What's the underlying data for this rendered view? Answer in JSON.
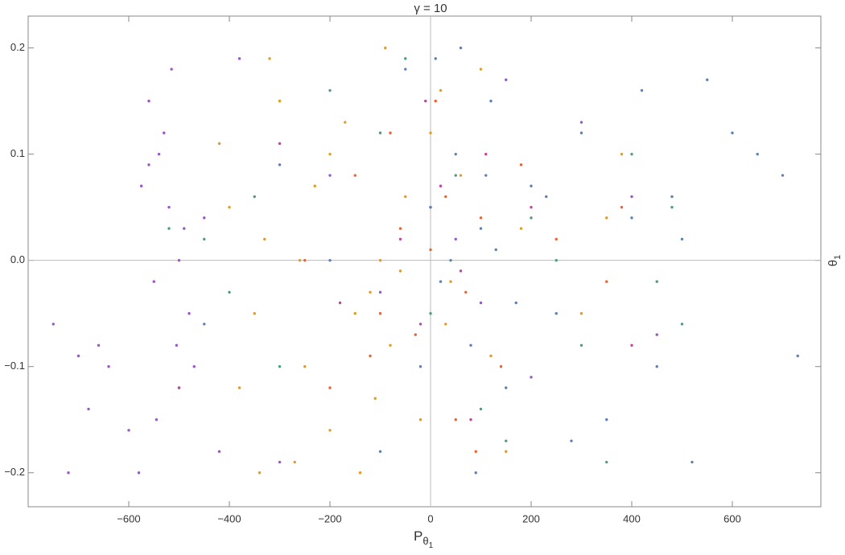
{
  "chart_data": {
    "type": "scatter",
    "title": "γ = 10",
    "x_label": "P",
    "x_label_sub": "θ",
    "x_label_subsub": "1",
    "y_label": "θ",
    "y_label_sub": "1",
    "xlim": [
      -800,
      776
    ],
    "ylim": [
      -0.232,
      0.23
    ],
    "xticks": [
      {
        "value": -600,
        "label": "−600"
      },
      {
        "value": -400,
        "label": "−400"
      },
      {
        "value": -200,
        "label": "−200"
      },
      0,
      200,
      400,
      600
    ],
    "yticks": [
      {
        "value": -0.2,
        "label": "−0.2"
      },
      {
        "value": -0.1,
        "label": "−0.1"
      },
      {
        "value": 0,
        "label": "0.0"
      },
      0.1,
      0.2
    ],
    "series": [
      {
        "color": "#9b55c9",
        "x": [
          -560,
          -540,
          -520,
          -500,
          -480,
          -505,
          -530,
          -550,
          -575,
          -490,
          -470,
          -515,
          -545,
          -560,
          -500,
          -450,
          -420,
          -380,
          -300,
          -200,
          -100,
          0,
          50,
          100,
          150,
          200,
          300,
          400,
          450,
          -750,
          -720,
          -700,
          -680,
          -660,
          -640,
          -600,
          -580
        ],
        "values": [
          0.15,
          0.1,
          0.05,
          0.0,
          -0.05,
          -0.08,
          0.12,
          -0.02,
          0.07,
          0.03,
          -0.1,
          0.18,
          -0.15,
          0.09,
          -0.12,
          0.04,
          -0.18,
          0.19,
          -0.19,
          0.08,
          -0.03,
          0.05,
          0.02,
          -0.04,
          0.17,
          -0.11,
          0.13,
          0.06,
          -0.07,
          -0.06,
          -0.2,
          -0.09,
          -0.14,
          -0.08,
          -0.1,
          -0.16,
          -0.2
        ]
      },
      {
        "color": "#e19c24",
        "x": [
          -400,
          -350,
          -330,
          -300,
          -250,
          -200,
          -150,
          -120,
          -100,
          -80,
          -50,
          -20,
          0,
          30,
          60,
          100,
          150,
          180,
          -380,
          -320,
          -270,
          -230,
          -170,
          -110,
          -60,
          20,
          120,
          -340,
          -260,
          -140,
          300,
          350,
          380,
          -420,
          -200,
          -90,
          40
        ],
        "values": [
          0.05,
          -0.05,
          0.02,
          0.15,
          -0.1,
          0.1,
          -0.05,
          -0.03,
          0.0,
          -0.08,
          0.06,
          -0.15,
          0.12,
          -0.06,
          0.08,
          0.18,
          -0.18,
          0.03,
          -0.12,
          0.19,
          -0.19,
          0.07,
          0.13,
          -0.13,
          -0.01,
          0.16,
          -0.09,
          -0.2,
          0.0,
          -0.2,
          -0.05,
          0.04,
          0.1,
          0.11,
          -0.16,
          0.2,
          -0.02
        ]
      },
      {
        "color": "#5e81b5",
        "x": [
          0,
          20,
          50,
          80,
          100,
          120,
          150,
          200,
          250,
          300,
          350,
          400,
          450,
          500,
          550,
          600,
          650,
          700,
          730,
          -50,
          -100,
          -200,
          -300,
          -450,
          60,
          90,
          130,
          170,
          230,
          280,
          420,
          480,
          520,
          10,
          40,
          -20,
          110
        ],
        "values": [
          0.05,
          -0.02,
          0.1,
          -0.08,
          0.03,
          0.15,
          -0.12,
          0.07,
          -0.05,
          0.12,
          -0.15,
          0.04,
          -0.1,
          0.02,
          0.17,
          0.12,
          0.1,
          0.08,
          -0.09,
          0.18,
          -0.18,
          0.0,
          0.09,
          -0.06,
          0.2,
          -0.2,
          0.01,
          -0.04,
          0.06,
          -0.17,
          0.16,
          0.06,
          -0.19,
          0.19,
          0.0,
          -0.1,
          0.08
        ]
      },
      {
        "color": "#eb6235",
        "x": [
          -100,
          -60,
          -30,
          0,
          30,
          70,
          100,
          140,
          -150,
          -200,
          250,
          350,
          380,
          -250,
          50,
          -80,
          10,
          90,
          180,
          -120
        ],
        "values": [
          -0.05,
          0.03,
          -0.07,
          0.01,
          0.06,
          -0.03,
          0.04,
          -0.1,
          0.08,
          -0.12,
          0.02,
          -0.02,
          0.05,
          0.0,
          -0.15,
          0.12,
          0.15,
          -0.18,
          0.09,
          -0.09
        ]
      },
      {
        "color": "#4f9a86",
        "x": [
          -450,
          -400,
          -350,
          -300,
          -100,
          0,
          50,
          100,
          200,
          250,
          300,
          400,
          450,
          480,
          500,
          -200,
          150,
          -50,
          350,
          -520
        ],
        "values": [
          0.02,
          -0.03,
          0.06,
          -0.1,
          0.12,
          -0.05,
          0.08,
          -0.14,
          0.04,
          0.0,
          -0.08,
          0.1,
          -0.02,
          0.05,
          -0.06,
          0.16,
          -0.17,
          0.19,
          -0.19,
          0.03
        ]
      },
      {
        "color": "#c0469a",
        "x": [
          -60,
          -20,
          20,
          60,
          110,
          -180,
          200,
          -300,
          400,
          -500,
          -10,
          80
        ],
        "values": [
          0.02,
          -0.06,
          0.07,
          -0.01,
          0.1,
          -0.04,
          0.05,
          0.11,
          -0.08,
          -0.12,
          0.15,
          -0.15
        ]
      }
    ]
  }
}
